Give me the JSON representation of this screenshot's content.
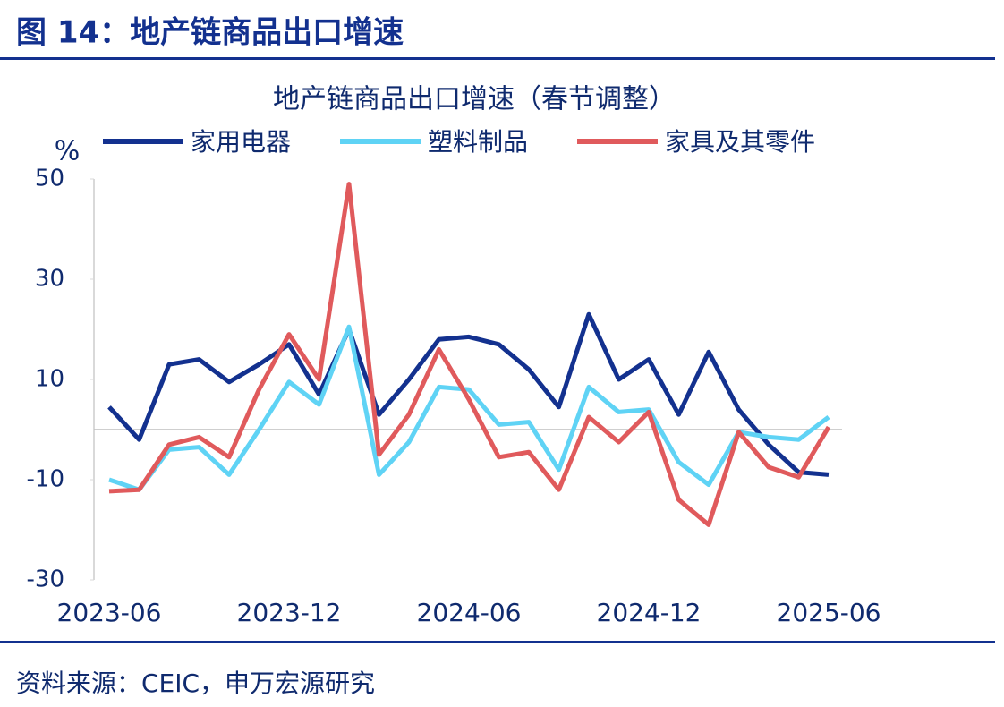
{
  "figure_title": "图 14：地产链商品出口增速",
  "source": "资料来源：CEIC，申万宏源研究",
  "chart_data": {
    "type": "line",
    "title": "地产链商品出口增速（春节调整）",
    "y_label": "%",
    "categories": [
      "2023-06",
      null,
      null,
      null,
      null,
      null,
      "2023-12",
      null,
      null,
      null,
      null,
      null,
      "2024-06",
      null,
      null,
      null,
      null,
      null,
      "2024-12",
      null,
      null,
      null,
      null,
      null,
      "2025-06"
    ],
    "series": [
      {
        "name": "家用电器",
        "color": "#13318f",
        "values": [
          4.5,
          -2,
          13,
          14,
          9.5,
          13,
          17,
          7,
          20,
          3,
          10,
          18,
          18.5,
          17,
          12,
          4.5,
          23,
          10,
          14,
          3,
          15.5,
          4,
          -3,
          -8.5,
          -9
        ]
      },
      {
        "name": "塑料制品",
        "color": "#5fd3f5",
        "values": [
          -10,
          -12,
          -4,
          -3.5,
          -9,
          0,
          9.5,
          5,
          20.5,
          -9,
          -2.5,
          8.5,
          8,
          1,
          1.5,
          -8,
          8.5,
          3.5,
          4,
          -6.5,
          -11,
          -0.5,
          -1.5,
          -2,
          2.5
        ]
      },
      {
        "name": "家具及其零件",
        "color": "#e05a5c",
        "values": [
          -12.3,
          -12,
          -3,
          -1.5,
          -5.5,
          8,
          19,
          10,
          49,
          -5,
          3,
          16,
          6,
          -5.5,
          -4.5,
          -12,
          2.5,
          -2.5,
          3.5,
          -14,
          -19,
          -0.5,
          -7.5,
          -9.5,
          0.5
        ]
      }
    ],
    "ylim": [
      -30,
      50
    ],
    "yticks": [
      -30,
      -10,
      10,
      30,
      50
    ]
  }
}
